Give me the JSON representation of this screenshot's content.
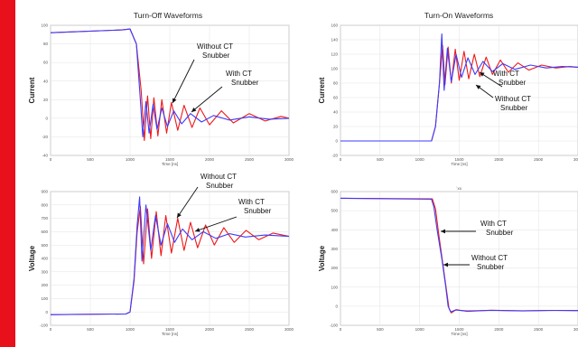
{
  "colors": {
    "with_snubber": "#3b3bff",
    "without_snubber": "#f01818",
    "accent_bar": "#e8101a"
  },
  "titles": {
    "left": "Turn-Off Waveforms",
    "right": "Turn-On Waveforms"
  },
  "chart_data": [
    {
      "id": "turnoff-current",
      "type": "line",
      "ylabel": "Current",
      "xlabel": "Time [ns]",
      "xlim": [
        0,
        3000
      ],
      "ylim": [
        -40,
        100
      ],
      "xticks": [
        0,
        500,
        1000,
        1500,
        2000,
        2500,
        3000
      ],
      "yticks": [
        -40,
        -20,
        0,
        20,
        40,
        60,
        80,
        100
      ],
      "grid": true,
      "annotations": [
        "Without CT\nSnubber",
        "With CT\nSnubber"
      ],
      "series": [
        {
          "points": [
            [
              0,
              92
            ],
            [
              900,
              95
            ],
            [
              1000,
              96
            ],
            [
              1080,
              80
            ],
            [
              1130,
              20
            ],
            [
              1160,
              -20
            ],
            [
              1200,
              18
            ],
            [
              1240,
              -16
            ],
            [
              1290,
              15
            ],
            [
              1340,
              -12
            ],
            [
              1400,
              11
            ],
            [
              1470,
              -9
            ],
            [
              1550,
              8
            ],
            [
              1650,
              -6
            ],
            [
              1760,
              5
            ],
            [
              1900,
              -4
            ],
            [
              2050,
              3
            ],
            [
              2250,
              -2
            ],
            [
              2500,
              1.5
            ],
            [
              2750,
              -1
            ],
            [
              3000,
              0
            ]
          ]
        },
        {
          "points": [
            [
              0,
              92
            ],
            [
              900,
              95
            ],
            [
              1000,
              96
            ],
            [
              1080,
              80
            ],
            [
              1140,
              30
            ],
            [
              1180,
              -24
            ],
            [
              1220,
              24
            ],
            [
              1260,
              -22
            ],
            [
              1300,
              22
            ],
            [
              1350,
              -19
            ],
            [
              1400,
              20
            ],
            [
              1460,
              -16
            ],
            [
              1520,
              17
            ],
            [
              1600,
              -13
            ],
            [
              1680,
              14
            ],
            [
              1780,
              -10
            ],
            [
              1880,
              11
            ],
            [
              2000,
              -7
            ],
            [
              2150,
              8
            ],
            [
              2300,
              -5
            ],
            [
              2500,
              5
            ],
            [
              2700,
              -3
            ],
            [
              2900,
              2
            ],
            [
              3000,
              0
            ]
          ]
        }
      ]
    },
    {
      "id": "turnon-current",
      "type": "line",
      "ylabel": "Current",
      "xlabel": "Time [ns]",
      "xlim": [
        0,
        3000
      ],
      "ylim": [
        -20,
        160
      ],
      "xticks": [
        0,
        500,
        1000,
        1500,
        2000,
        2500,
        3000
      ],
      "yticks": [
        -20,
        0,
        20,
        40,
        60,
        80,
        100,
        120,
        140,
        160
      ],
      "grid": true,
      "annotations": [
        "With CT\nSnubber",
        "Without CT\nSnubber"
      ],
      "series": [
        {
          "points": [
            [
              0,
              0
            ],
            [
              1150,
              0
            ],
            [
              1200,
              20
            ],
            [
              1250,
              80
            ],
            [
              1280,
              148
            ],
            [
              1310,
              70
            ],
            [
              1350,
              128
            ],
            [
              1400,
              82
            ],
            [
              1460,
              120
            ],
            [
              1530,
              88
            ],
            [
              1610,
              115
            ],
            [
              1700,
              92
            ],
            [
              1800,
              110
            ],
            [
              1920,
              96
            ],
            [
              2050,
              107
            ],
            [
              2200,
              99
            ],
            [
              2400,
              105
            ],
            [
              2600,
              101
            ],
            [
              2800,
              103
            ],
            [
              3000,
              102
            ]
          ]
        },
        {
          "points": [
            [
              0,
              0
            ],
            [
              1150,
              0
            ],
            [
              1200,
              20
            ],
            [
              1250,
              80
            ],
            [
              1290,
              132
            ],
            [
              1320,
              78
            ],
            [
              1360,
              130
            ],
            [
              1400,
              80
            ],
            [
              1450,
              127
            ],
            [
              1500,
              84
            ],
            [
              1560,
              124
            ],
            [
              1620,
              86
            ],
            [
              1690,
              120
            ],
            [
              1760,
              89
            ],
            [
              1840,
              116
            ],
            [
              1920,
              92
            ],
            [
              2020,
              112
            ],
            [
              2120,
              95
            ],
            [
              2240,
              108
            ],
            [
              2380,
              98
            ],
            [
              2540,
              105
            ],
            [
              2720,
              101
            ],
            [
              2900,
              103
            ],
            [
              3000,
              102
            ]
          ]
        }
      ]
    },
    {
      "id": "turnoff-voltage",
      "type": "line",
      "ylabel": "Voltage",
      "xlabel": "Time [ns]",
      "xlim": [
        0,
        3000
      ],
      "ylim": [
        -100,
        900
      ],
      "xticks": [
        0,
        500,
        1000,
        1500,
        2000,
        2500,
        3000
      ],
      "yticks": [
        -100,
        0,
        100,
        200,
        300,
        400,
        500,
        600,
        700,
        800,
        900
      ],
      "grid": true,
      "annotations": [
        "Without CT\nSnubber",
        "With CT\nSnubber"
      ],
      "series": [
        {
          "points": [
            [
              0,
              -20
            ],
            [
              950,
              -15
            ],
            [
              1000,
              0
            ],
            [
              1050,
              250
            ],
            [
              1090,
              650
            ],
            [
              1120,
              860
            ],
            [
              1150,
              380
            ],
            [
              1200,
              800
            ],
            [
              1260,
              460
            ],
            [
              1320,
              720
            ],
            [
              1390,
              500
            ],
            [
              1470,
              660
            ],
            [
              1560,
              520
            ],
            [
              1660,
              620
            ],
            [
              1780,
              540
            ],
            [
              1920,
              600
            ],
            [
              2080,
              550
            ],
            [
              2250,
              585
            ],
            [
              2450,
              560
            ],
            [
              2700,
              575
            ],
            [
              3000,
              565
            ]
          ]
        },
        {
          "points": [
            [
              0,
              -20
            ],
            [
              950,
              -15
            ],
            [
              1000,
              0
            ],
            [
              1050,
              230
            ],
            [
              1090,
              600
            ],
            [
              1130,
              790
            ],
            [
              1170,
              360
            ],
            [
              1220,
              770
            ],
            [
              1270,
              400
            ],
            [
              1330,
              750
            ],
            [
              1390,
              420
            ],
            [
              1450,
              720
            ],
            [
              1520,
              440
            ],
            [
              1600,
              700
            ],
            [
              1680,
              460
            ],
            [
              1760,
              670
            ],
            [
              1850,
              480
            ],
            [
              1950,
              650
            ],
            [
              2060,
              500
            ],
            [
              2180,
              630
            ],
            [
              2310,
              520
            ],
            [
              2460,
              610
            ],
            [
              2620,
              540
            ],
            [
              2800,
              590
            ],
            [
              3000,
              565
            ]
          ]
        }
      ]
    },
    {
      "id": "turnon-voltage",
      "type": "line",
      "ylabel": "Voltage",
      "xlabel": "Time [ns]",
      "subtitle": "`xx",
      "xlim": [
        0,
        3000
      ],
      "ylim": [
        -100,
        600
      ],
      "xticks": [
        0,
        500,
        1000,
        1500,
        2000,
        2500,
        3000
      ],
      "yticks": [
        -100,
        0,
        100,
        200,
        300,
        400,
        500,
        600
      ],
      "grid": true,
      "annotations": [
        "With CT\nSnubber",
        "Without CT\nSnubber"
      ],
      "series": [
        {
          "points": [
            [
              0,
              565
            ],
            [
              1150,
              560
            ],
            [
              1180,
              520
            ],
            [
              1220,
              400
            ],
            [
              1280,
              250
            ],
            [
              1330,
              100
            ],
            [
              1360,
              0
            ],
            [
              1390,
              -30
            ],
            [
              1450,
              -20
            ],
            [
              1600,
              -25
            ],
            [
              1900,
              -22
            ],
            [
              2300,
              -24
            ],
            [
              2700,
              -22
            ],
            [
              3000,
              -23
            ]
          ]
        },
        {
          "points": [
            [
              0,
              565
            ],
            [
              1160,
              562
            ],
            [
              1200,
              510
            ],
            [
              1240,
              380
            ],
            [
              1290,
              230
            ],
            [
              1340,
              80
            ],
            [
              1370,
              -10
            ],
            [
              1400,
              -35
            ],
            [
              1460,
              -18
            ],
            [
              1600,
              -27
            ],
            [
              1900,
              -21
            ],
            [
              2300,
              -25
            ],
            [
              2700,
              -22
            ],
            [
              3000,
              -23
            ]
          ]
        }
      ]
    }
  ]
}
